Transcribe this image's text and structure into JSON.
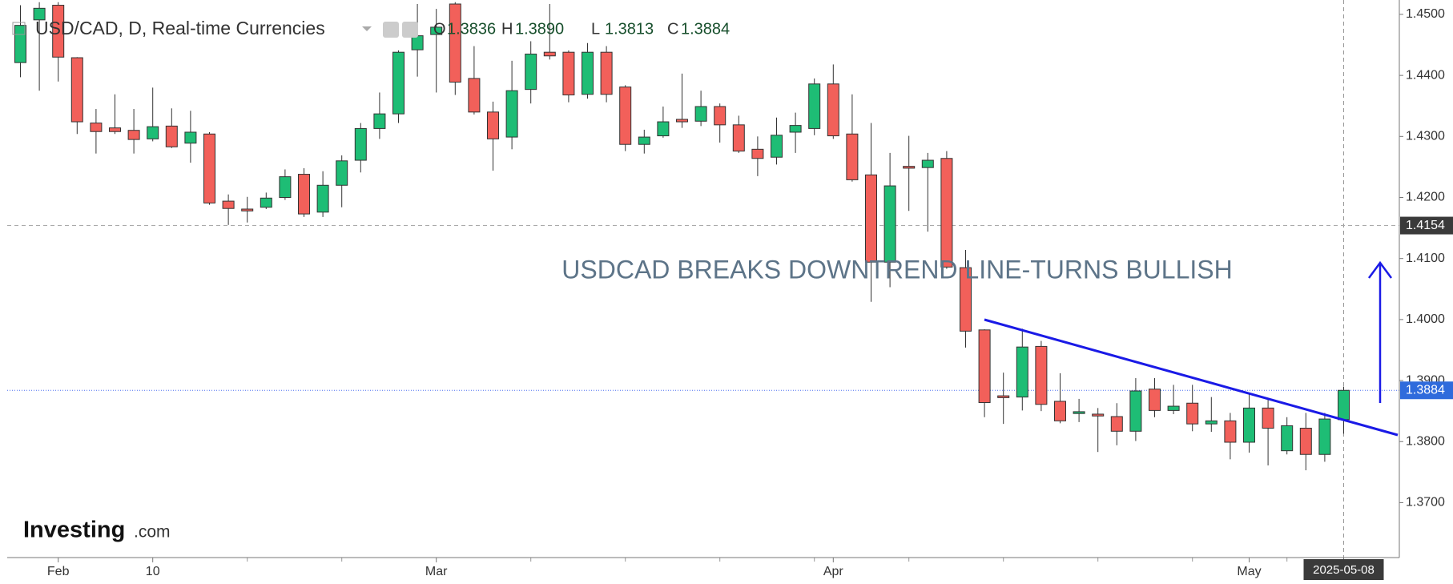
{
  "chart_data": {
    "type": "candlestick",
    "title": "USD/CAD, D, Real-time Currencies",
    "ohlc_legend": [
      {
        "key": "O",
        "text": "1.3836"
      },
      {
        "key": "H",
        "text": "1.3890"
      },
      {
        "key": "L",
        "text": "1.3813"
      },
      {
        "key": "C",
        "text": "1.3884"
      }
    ],
    "annotation": "USDCAD BREAKS DOWNTREND LINE-TURNS BULLISH",
    "watermark": [
      "Investing",
      ".com"
    ],
    "categories": [
      null,
      null,
      "Feb",
      null,
      null,
      null,
      null,
      "10",
      null,
      null,
      null,
      null,
      null,
      null,
      null,
      null,
      null,
      null,
      null,
      null,
      null,
      null,
      "Mar",
      null,
      null,
      null,
      null,
      null,
      null,
      null,
      null,
      null,
      null,
      null,
      null,
      null,
      null,
      null,
      null,
      null,
      null,
      null,
      null,
      "Apr",
      null,
      null,
      null,
      null,
      null,
      null,
      null,
      null,
      null,
      null,
      null,
      null,
      null,
      null,
      null,
      null,
      null,
      null,
      null,
      null,
      null,
      "May",
      null,
      null,
      null,
      null,
      "2025-05-08"
    ],
    "open": [
      1.4421,
      1.4491,
      1.4515,
      1.4429,
      1.4322,
      1.4314,
      1.431,
      1.4296,
      1.4317,
      1.4289,
      1.4304,
      1.4194,
      1.4181,
      1.4184,
      1.42,
      1.4238,
      1.4176,
      1.422,
      1.4261,
      1.4313,
      1.4337,
      1.4442,
      1.4467,
      1.4517,
      1.4395,
      1.434,
      1.4299,
      1.4377,
      1.4438,
      1.4438,
      1.4369,
      1.4438,
      1.4381,
      1.4287,
      1.4301,
      1.4328,
      1.4325,
      1.4349,
      1.4319,
      1.4279,
      1.4266,
      1.4307,
      1.4313,
      1.4386,
      1.4304,
      1.4237,
      1.4094,
      1.4251,
      1.4249,
      1.4264,
      1.4085,
      1.3983,
      1.3875,
      1.3873,
      1.3956,
      1.3866,
      1.3846,
      1.3845,
      1.3841,
      1.3817,
      1.3886,
      1.3851,
      1.3863,
      1.3829,
      1.3834,
      1.3799,
      1.3855,
      1.3785,
      1.3822,
      1.3779,
      1.3836
    ],
    "high": [
      1.4515,
      1.452,
      1.452,
      1.443,
      1.4345,
      1.4369,
      1.4345,
      1.438,
      1.4346,
      1.4342,
      1.4307,
      1.4205,
      1.4201,
      1.4208,
      1.4246,
      1.4248,
      1.4243,
      1.4269,
      1.4322,
      1.4372,
      1.4441,
      1.4517,
      1.4509,
      1.452,
      1.4448,
      1.4357,
      1.4424,
      1.4456,
      1.4517,
      1.4441,
      1.4453,
      1.4448,
      1.4384,
      1.4311,
      1.4349,
      1.4403,
      1.4375,
      1.4354,
      1.4334,
      1.43,
      1.4331,
      1.4339,
      1.4395,
      1.4418,
      1.4369,
      1.4322,
      1.4273,
      1.4301,
      1.4273,
      1.4276,
      1.4114,
      1.3984,
      1.3913,
      1.3985,
      1.3965,
      1.3912,
      1.387,
      1.3855,
      1.3863,
      1.3904,
      1.3904,
      1.3893,
      1.3893,
      1.3873,
      1.3847,
      1.3878,
      1.387,
      1.384,
      1.3847,
      1.3847,
      1.389
    ],
    "low": [
      1.4397,
      1.4375,
      1.439,
      1.4304,
      1.4272,
      1.4304,
      1.4272,
      1.4292,
      1.4281,
      1.4257,
      1.4188,
      1.4155,
      1.4159,
      1.4181,
      1.4196,
      1.4168,
      1.4168,
      1.4184,
      1.4241,
      1.4296,
      1.4322,
      1.4398,
      1.4372,
      1.4368,
      1.4336,
      1.4244,
      1.4279,
      1.4354,
      1.4426,
      1.4356,
      1.4362,
      1.4356,
      1.4276,
      1.4272,
      1.4298,
      1.4314,
      1.4317,
      1.429,
      1.4273,
      1.4235,
      1.4254,
      1.4273,
      1.4302,
      1.4296,
      1.4226,
      1.4029,
      1.4053,
      1.4178,
      1.4144,
      1.4083,
      1.3954,
      1.384,
      1.3829,
      1.3851,
      1.385,
      1.383,
      1.3832,
      1.3783,
      1.3794,
      1.3801,
      1.384,
      1.3845,
      1.3817,
      1.3816,
      1.3771,
      1.3782,
      1.3761,
      1.3779,
      1.3753,
      1.3767,
      1.3813
    ],
    "close": [
      1.4482,
      1.451,
      1.443,
      1.4324,
      1.4308,
      1.4308,
      1.4295,
      1.4316,
      1.4283,
      1.4307,
      1.4191,
      1.4182,
      1.4178,
      1.4199,
      1.4234,
      1.4173,
      1.422,
      1.426,
      1.4313,
      1.4337,
      1.4438,
      1.4465,
      1.4479,
      1.4389,
      1.434,
      1.4296,
      1.4375,
      1.4435,
      1.4432,
      1.4368,
      1.4438,
      1.4369,
      1.4287,
      1.4299,
      1.4324,
      1.4324,
      1.4349,
      1.4319,
      1.4276,
      1.4264,
      1.4302,
      1.4318,
      1.4386,
      1.4301,
      1.4229,
      1.4094,
      1.4219,
      1.4248,
      1.4261,
      1.4086,
      1.3981,
      1.3864,
      1.3872,
      1.3955,
      1.3861,
      1.3834,
      1.3849,
      1.3842,
      1.3817,
      1.3883,
      1.3851,
      1.3858,
      1.3829,
      1.3834,
      1.3799,
      1.3855,
      1.3822,
      1.3826,
      1.3779,
      1.3837,
      1.3884
    ],
    "up_color": "#1ebd75",
    "down_color": "#f2605a",
    "ylim": [
      1.361,
      1.4517
    ],
    "yticks": [
      {
        "value": 1.45,
        "label": "1.4500"
      },
      {
        "value": 1.44,
        "label": "1.4400"
      },
      {
        "value": 1.43,
        "label": "1.4300"
      },
      {
        "value": 1.42,
        "label": "1.4200"
      },
      {
        "value": 1.41,
        "label": "1.4100"
      },
      {
        "value": 1.4,
        "label": "1.4000"
      },
      {
        "value": 1.39,
        "label": "1.3900"
      },
      {
        "value": 1.38,
        "label": "1.3800"
      },
      {
        "value": 1.37,
        "label": "1.3700"
      }
    ],
    "crosshair_price": {
      "value": 1.4154,
      "label": "1.4154"
    },
    "last_price": {
      "value": 1.3884,
      "label": "1.3884"
    }
  }
}
